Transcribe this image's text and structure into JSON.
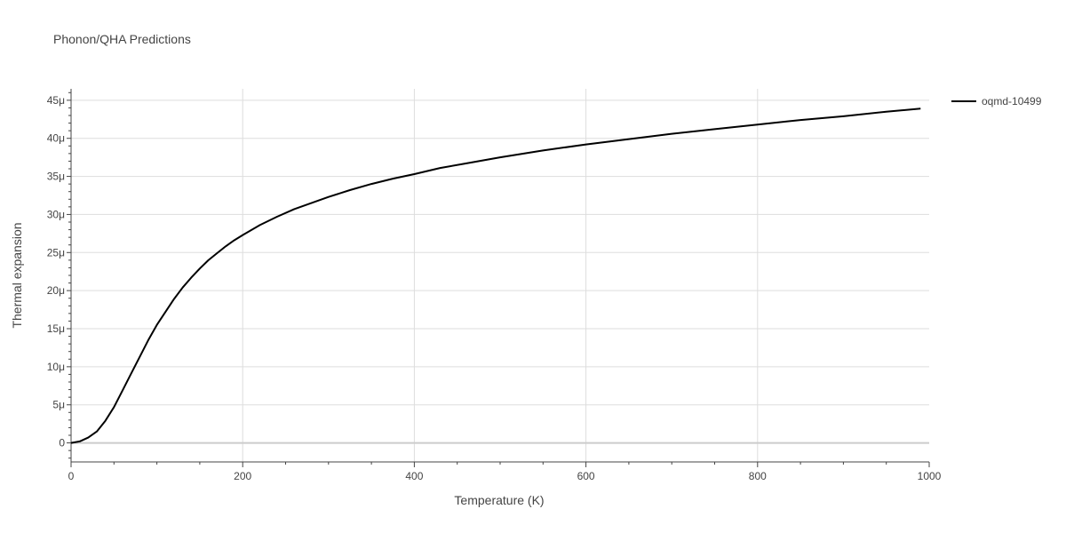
{
  "chart_data": {
    "type": "line",
    "title": "Phonon/QHA Predictions",
    "xlabel": "Temperature (K)",
    "ylabel": "Thermal expansion",
    "xlim": [
      0,
      1000
    ],
    "ylim": [
      -2.5,
      46.5
    ],
    "x_ticks": [
      0,
      200,
      400,
      600,
      800,
      1000
    ],
    "x_tick_labels": [
      "0",
      "200",
      "400",
      "600",
      "800",
      "1000"
    ],
    "y_ticks": [
      0,
      5,
      10,
      15,
      20,
      25,
      30,
      35,
      40,
      45
    ],
    "y_tick_labels": [
      "0",
      "5μ",
      "10μ",
      "15μ",
      "20μ",
      "25μ",
      "30μ",
      "35μ",
      "40μ",
      "45μ"
    ],
    "grid": true,
    "legend_position": "top-right",
    "series": [
      {
        "name": "oqmd-10499",
        "color": "#000000",
        "x": [
          0,
          10,
          20,
          30,
          40,
          50,
          60,
          70,
          80,
          90,
          100,
          110,
          120,
          130,
          140,
          150,
          160,
          170,
          180,
          190,
          200,
          220,
          240,
          260,
          280,
          300,
          325,
          350,
          375,
          400,
          430,
          460,
          500,
          550,
          600,
          650,
          700,
          750,
          800,
          850,
          900,
          950,
          990
        ],
        "y": [
          0,
          0.2,
          0.7,
          1.5,
          2.9,
          4.7,
          6.9,
          9.1,
          11.3,
          13.5,
          15.5,
          17.2,
          18.9,
          20.4,
          21.7,
          22.9,
          24.0,
          24.9,
          25.8,
          26.6,
          27.3,
          28.6,
          29.7,
          30.7,
          31.5,
          32.3,
          33.2,
          34.0,
          34.7,
          35.3,
          36.1,
          36.7,
          37.5,
          38.4,
          39.2,
          39.9,
          40.6,
          41.2,
          41.8,
          42.4,
          42.9,
          43.5,
          43.9
        ]
      }
    ]
  }
}
